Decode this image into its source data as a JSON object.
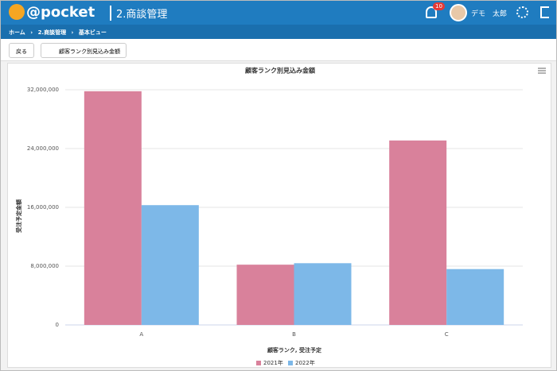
{
  "header": {
    "logo": "@pocket",
    "module": "2.商談管理",
    "notification_count": 10,
    "user": "デモ　太郎"
  },
  "breadcrumb": [
    "ホーム",
    "2.商談管理",
    "基本ビュー"
  ],
  "toolbar": {
    "back": "戻る",
    "view": "顧客ランク別見込み金額"
  },
  "chart_data": {
    "type": "bar",
    "title": "顧客ランク別見込み金額",
    "x_label": "顧客ランク, 受注予定",
    "y_label": "受注予定金額",
    "categories": [
      "A",
      "B",
      "C"
    ],
    "series": [
      {
        "name": "2021年",
        "color": "#d9819b",
        "values": [
          31800000,
          8200000,
          25100000
        ]
      },
      {
        "name": "2022年",
        "color": "#7db8e8",
        "values": [
          16300000,
          8400000,
          7600000
        ]
      }
    ],
    "ylim": [
      0,
      32000000
    ],
    "yticks": [
      0,
      {
        "value": 8000000,
        "label": "8,000,000"
      },
      {
        "value": 16000000,
        "label": "16,000,000"
      },
      {
        "value": 24000000,
        "label": "24,000,000"
      },
      {
        "value": 32000000,
        "label": "32,000,000"
      }
    ],
    "grid": true
  }
}
